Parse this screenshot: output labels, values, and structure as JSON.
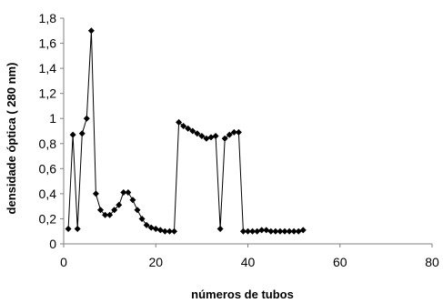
{
  "chart_data": {
    "type": "line",
    "xlabel": "números de tubos",
    "ylabel": "densidade óptica ( 280 nm)",
    "xlim": [
      0,
      80
    ],
    "ylim": [
      0,
      1.8
    ],
    "x_ticks": [
      0,
      20,
      40,
      60,
      80
    ],
    "x_tick_labels": [
      "0",
      "20",
      "40",
      "60",
      "80"
    ],
    "y_ticks": [
      0,
      0.2,
      0.4,
      0.6,
      0.8,
      1,
      1.2,
      1.4,
      1.6,
      1.8
    ],
    "y_tick_labels": [
      "0",
      "0,2",
      "0,4",
      "0,6",
      "0,8",
      "1",
      "1,2",
      "1,4",
      "1,6",
      "1,8"
    ],
    "grid": false,
    "legend": false,
    "marker": "diamond",
    "line_color": "#000000",
    "series": [
      {
        "points": [
          [
            1,
            0.12
          ],
          [
            2,
            0.87
          ],
          [
            3,
            0.12
          ],
          [
            4,
            0.88
          ],
          [
            5,
            1.0
          ],
          [
            6,
            1.7
          ],
          [
            7,
            0.4
          ],
          [
            8,
            0.27
          ],
          [
            9,
            0.23
          ],
          [
            10,
            0.23
          ],
          [
            11,
            0.27
          ],
          [
            12,
            0.31
          ],
          [
            13,
            0.41
          ],
          [
            14,
            0.41
          ],
          [
            15,
            0.35
          ],
          [
            16,
            0.27
          ],
          [
            17,
            0.2
          ],
          [
            18,
            0.15
          ],
          [
            19,
            0.13
          ],
          [
            20,
            0.12
          ],
          [
            21,
            0.11
          ],
          [
            22,
            0.1
          ],
          [
            23,
            0.1
          ],
          [
            24,
            0.1
          ],
          [
            25,
            0.97
          ],
          [
            26,
            0.94
          ],
          [
            27,
            0.92
          ],
          [
            28,
            0.9
          ],
          [
            29,
            0.88
          ],
          [
            30,
            0.86
          ],
          [
            31,
            0.84
          ],
          [
            32,
            0.85
          ],
          [
            33,
            0.86
          ],
          [
            34,
            0.12
          ],
          [
            35,
            0.84
          ],
          [
            36,
            0.87
          ],
          [
            37,
            0.89
          ],
          [
            38,
            0.89
          ],
          [
            39,
            0.1
          ],
          [
            40,
            0.1
          ],
          [
            41,
            0.1
          ],
          [
            42,
            0.1
          ],
          [
            43,
            0.11
          ],
          [
            44,
            0.11
          ],
          [
            45,
            0.1
          ],
          [
            46,
            0.1
          ],
          [
            47,
            0.1
          ],
          [
            48,
            0.1
          ],
          [
            49,
            0.1
          ],
          [
            50,
            0.1
          ],
          [
            51,
            0.1
          ],
          [
            52,
            0.11
          ]
        ]
      }
    ]
  }
}
